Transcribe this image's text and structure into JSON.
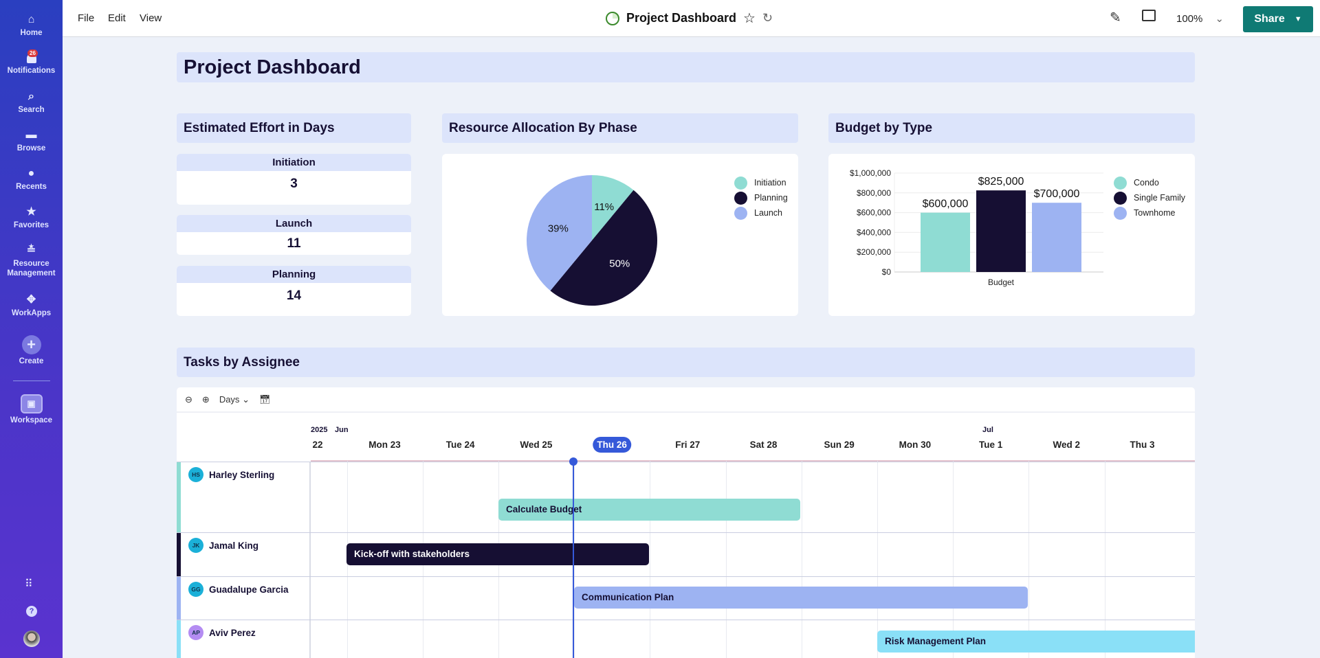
{
  "sidebar": {
    "items": [
      {
        "label": "Home",
        "icon": "home-icon"
      },
      {
        "label": "Notifications",
        "icon": "bell-icon",
        "badge": "26"
      },
      {
        "label": "Search",
        "icon": "search-icon"
      },
      {
        "label": "Browse",
        "icon": "folder-icon"
      },
      {
        "label": "Recents",
        "icon": "clock-icon"
      },
      {
        "label": "Favorites",
        "icon": "star-icon"
      },
      {
        "label": "Resource Management",
        "icon": "people-icon"
      },
      {
        "label": "WorkApps",
        "icon": "workapps-icon"
      },
      {
        "label": "Create",
        "icon": "plus-icon"
      },
      {
        "label": "Workspace",
        "icon": "workspace-icon"
      }
    ]
  },
  "topbar": {
    "menus": [
      "File",
      "Edit",
      "View"
    ],
    "title": "Project Dashboard",
    "zoom": "100%",
    "share": "Share"
  },
  "page_title": "Project Dashboard",
  "effort": {
    "title": "Estimated Effort in Days",
    "items": [
      {
        "label": "Initiation",
        "value": "3"
      },
      {
        "label": "Launch",
        "value": "11"
      },
      {
        "label": "Planning",
        "value": "14"
      }
    ]
  },
  "colors": {
    "initiation": "#8fdcd3",
    "planning": "#160f33",
    "launch": "#9db3f2",
    "accent": "#0f7a74"
  },
  "chart_data": [
    {
      "type": "pie",
      "title": "Resource Allocation By Phase",
      "legend": "top-right",
      "slices": [
        {
          "name": "Initiation",
          "value": 11,
          "label": "11%",
          "color": "#8fdcd3"
        },
        {
          "name": "Planning",
          "value": 50,
          "label": "50%",
          "color": "#160f33"
        },
        {
          "name": "Launch",
          "value": 39,
          "label": "39%",
          "color": "#9db3f2"
        }
      ]
    },
    {
      "type": "bar",
      "title": "Budget by Type",
      "categories": [
        "Budget"
      ],
      "legend": "top-right",
      "grid": true,
      "ylim": [
        0,
        1000000
      ],
      "yticks": [
        "$0",
        "$200,000",
        "$400,000",
        "$600,000",
        "$800,000",
        "$1,000,000"
      ],
      "series": [
        {
          "name": "Condo",
          "values": [
            600000
          ],
          "label": "$600,000",
          "color": "#8fdcd3"
        },
        {
          "name": "Single Family",
          "values": [
            825000
          ],
          "label": "$825,000",
          "color": "#160f33"
        },
        {
          "name": "Townhome",
          "values": [
            700000
          ],
          "label": "$700,000",
          "color": "#9db3f2"
        }
      ]
    }
  ],
  "tasks": {
    "title": "Tasks by Assignee",
    "scale": "Days",
    "year": "2025",
    "month1": "Jun",
    "month2": "Jul",
    "days": [
      "22",
      "Mon 23",
      "Tue 24",
      "Wed 25",
      "Thu 26",
      "Fri 27",
      "Sat 28",
      "Sun 29",
      "Mon 30",
      "Tue 1",
      "Wed 2",
      "Thu 3"
    ],
    "today": "Thu 26",
    "rows": [
      {
        "initials": "HS",
        "name": "Harley Sterling",
        "task": "Calculate Budget",
        "start": "2025-06-25 (midday)",
        "end": "2025-06-28"
      },
      {
        "initials": "JK",
        "name": "Jamal King",
        "task": "Kick-off with stakeholders",
        "start": "2025-06-23",
        "end": "2025-06-26"
      },
      {
        "initials": "GG",
        "name": "Guadalupe Garcia",
        "task": "Communication Plan",
        "start": "2025-06-26",
        "end": "2025-07-01"
      },
      {
        "initials": "AP",
        "name": "Aviv Perez",
        "task": "Risk Management Plan",
        "start": "2025-06-30",
        "end": "2025-07-03+"
      }
    ]
  }
}
